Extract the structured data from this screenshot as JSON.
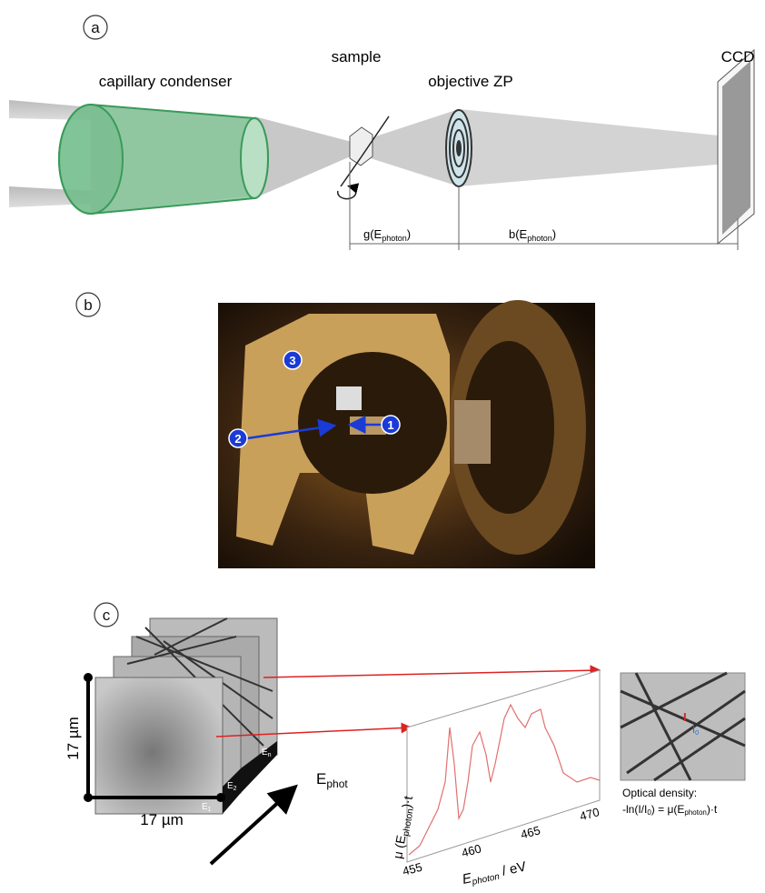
{
  "panel_a": {
    "label": "a",
    "capillary": "capillary condenser",
    "sample": "sample",
    "objective": "objective ZP",
    "ccd": "CCD",
    "g": {
      "main": "g(E",
      "sub": "photon",
      "close": ")"
    },
    "b": {
      "main": "b(E",
      "sub": "photon",
      "close": ")"
    }
  },
  "panel_b": {
    "label": "b",
    "markers": [
      "1",
      "2",
      "3"
    ]
  },
  "panel_c": {
    "label": "c",
    "size_y": "17 µm",
    "size_x": "17 µm",
    "stack": [
      {
        "main": "E",
        "sub": "1"
      },
      {
        "main": "E",
        "sub": "2"
      },
      {
        "main": "E",
        "sub": "n"
      }
    ],
    "energy": {
      "main": "E",
      "sub": "phot"
    },
    "axis_ticks": [
      "455",
      "460",
      "465",
      "470"
    ],
    "y_label": {
      "main": "μ (E",
      "sub": "photon",
      "close": ")·t"
    },
    "x_label": {
      "main": "E",
      "sub": "photon",
      "close": " / eV"
    },
    "inset_i": "I",
    "inset_i0": {
      "main": "I",
      "sub": "0"
    },
    "od_title": "Optical density:",
    "od_formula": {
      "p0": "-ln(I/I",
      "s0": "0",
      "p1": ") = μ(E",
      "s1": "photon",
      "p2": ")·t"
    }
  }
}
